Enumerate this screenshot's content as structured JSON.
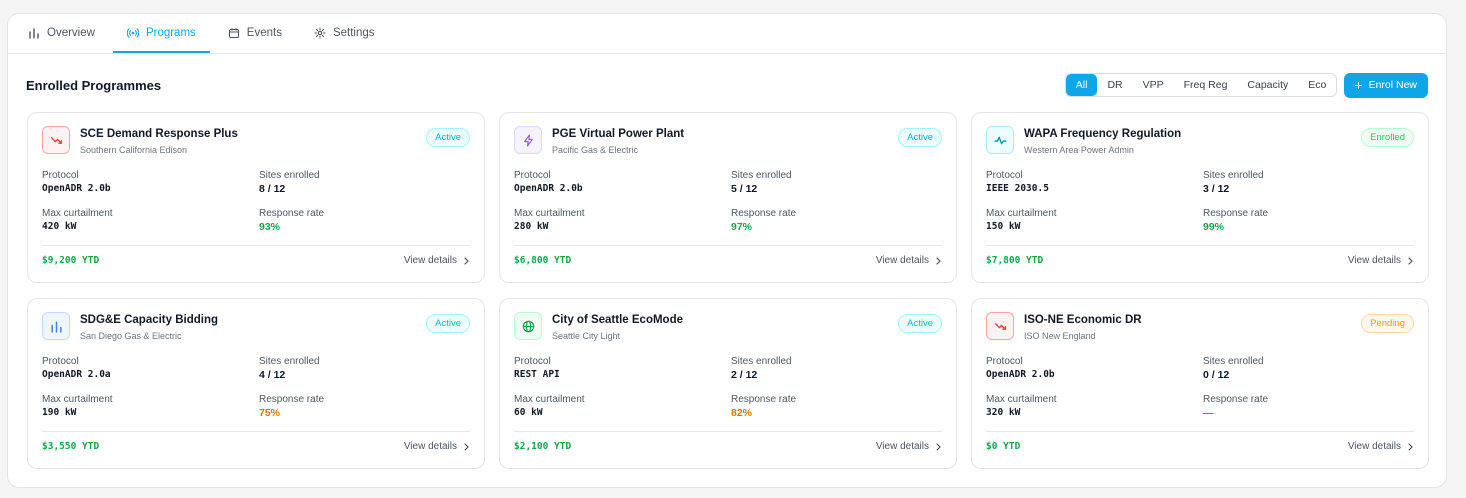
{
  "tabs": [
    {
      "label": "Overview",
      "icon": "bar-chart-icon",
      "active": false
    },
    {
      "label": "Programs",
      "icon": "broadcast-icon",
      "active": true
    },
    {
      "label": "Events",
      "icon": "calendar-icon",
      "active": false
    },
    {
      "label": "Settings",
      "icon": "gear-icon",
      "active": false
    }
  ],
  "section_title": "Enrolled Programmes",
  "filters": [
    "All",
    "DR",
    "VPP",
    "Freq Reg",
    "Capacity",
    "Eco"
  ],
  "active_filter": "All",
  "enrol_button": {
    "icon": "plus-icon",
    "label": "Enrol New"
  },
  "labels": {
    "protocol": "Protocol",
    "sites": "Sites enrolled",
    "curtail": "Max curtailment",
    "response": "Response rate",
    "view": "View details"
  },
  "colors": {
    "accent": "#0ea5e9",
    "green": "#16a34a",
    "amber": "#d97706",
    "red": "#ef4444"
  },
  "programs": [
    {
      "name": "SCE Demand Response Plus",
      "utility": "Southern California Edison",
      "icon": "trend-down-icon",
      "icon_color": "red",
      "status": "Active",
      "protocol": "OpenADR 2.0b",
      "sites": "8 / 12",
      "curtailment": "420 kW",
      "response_rate": "93%",
      "response_color": "green",
      "ytd": "$9,200 YTD"
    },
    {
      "name": "PGE Virtual Power Plant",
      "utility": "Pacific Gas & Electric",
      "icon": "lightning-icon",
      "icon_color": "purple",
      "status": "Active",
      "protocol": "OpenADR 2.0b",
      "sites": "5 / 12",
      "curtailment": "280 kW",
      "response_rate": "97%",
      "response_color": "green",
      "ytd": "$6,800 YTD"
    },
    {
      "name": "WAPA Frequency Regulation",
      "utility": "Western Area Power Admin",
      "icon": "pulse-icon",
      "icon_color": "cyan",
      "status": "Enrolled",
      "protocol": "IEEE 2030.5",
      "sites": "3 / 12",
      "curtailment": "150 kW",
      "response_rate": "99%",
      "response_color": "green",
      "ytd": "$7,800 YTD"
    },
    {
      "name": "SDG&E Capacity Bidding",
      "utility": "San Diego Gas & Electric",
      "icon": "bar-chart-icon",
      "icon_color": "blue",
      "status": "Active",
      "protocol": "OpenADR 2.0a",
      "sites": "4 / 12",
      "curtailment": "190 kW",
      "response_rate": "75%",
      "response_color": "amber",
      "ytd": "$3,550 YTD"
    },
    {
      "name": "City of Seattle EcoMode",
      "utility": "Seattle City Light",
      "icon": "globe-icon",
      "icon_color": "green",
      "status": "Active",
      "protocol": "REST API",
      "sites": "2 / 12",
      "curtailment": "60 kW",
      "response_rate": "82%",
      "response_color": "amber",
      "ytd": "$2,100 YTD"
    },
    {
      "name": "ISO-NE Economic DR",
      "utility": "ISO New England",
      "icon": "trend-down-icon",
      "icon_color": "red",
      "status": "Pending",
      "protocol": "OpenADR 2.0b",
      "sites": "0 / 12",
      "curtailment": "320 kW",
      "response_rate": "—",
      "response_color": "red",
      "ytd": "$0 YTD"
    }
  ]
}
